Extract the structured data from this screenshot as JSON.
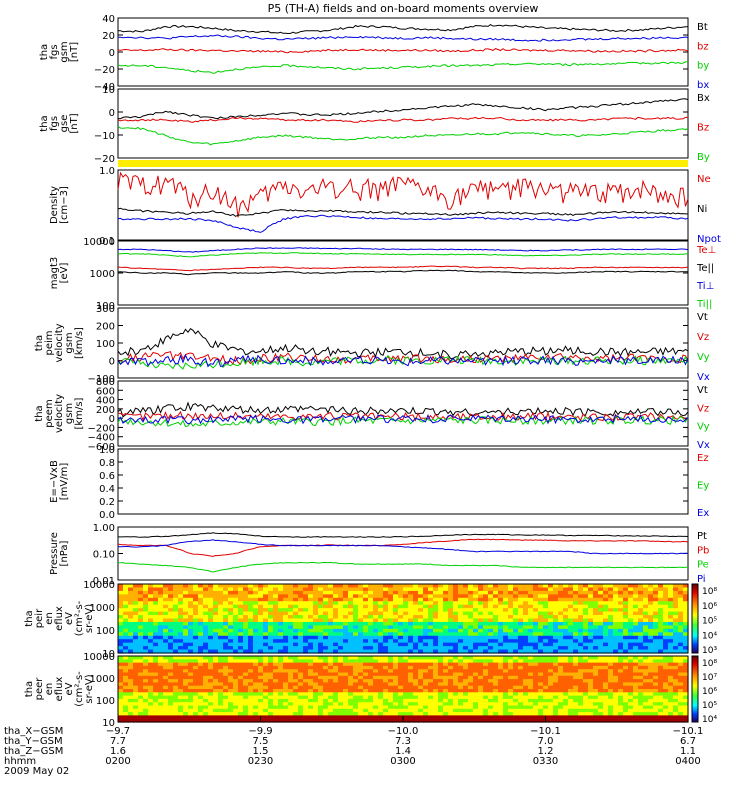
{
  "title": "P5 (TH-A) fields and on-board moments overview",
  "colors": {
    "black": "#000000",
    "red": "#e00000",
    "green": "#00d000",
    "blue": "#0000e0",
    "yellow": "#ffee00"
  },
  "panels": [
    {
      "id": "fgs-gsm",
      "ylabel_lines": [
        "tha",
        "fgs",
        "gsm",
        "[nT]"
      ],
      "ticks": [
        "40",
        "20",
        "0",
        "−20",
        "−40"
      ],
      "ylim": [
        -40,
        40
      ],
      "scale": "linear",
      "legend": [
        {
          "label": "Bt",
          "color": "black"
        },
        {
          "label": "bz",
          "color": "red"
        },
        {
          "label": "by",
          "color": "green"
        },
        {
          "label": "bx",
          "color": "blue"
        }
      ]
    },
    {
      "id": "fgs-gse",
      "ylabel_lines": [
        "tha",
        "fgs",
        "gse",
        "[nT]"
      ],
      "ticks": [
        "10",
        "0",
        "−10",
        "−20"
      ],
      "ylim": [
        -25,
        15
      ],
      "scale": "linear",
      "legend": [
        {
          "label": "Bx",
          "color": "black"
        },
        {
          "label": "Bz",
          "color": "red"
        },
        {
          "label": "By",
          "color": "green"
        }
      ]
    },
    {
      "id": "density",
      "ylabel_lines": [
        "Density",
        "[cm−3]"
      ],
      "ticks": [
        "1.0",
        "0.1"
      ],
      "ylim": [
        0.1,
        1.0
      ],
      "scale": "log",
      "legend": [
        {
          "label": "Ne",
          "color": "red"
        },
        {
          "label": "Ni",
          "color": "black"
        },
        {
          "label": "Npot",
          "color": "blue"
        }
      ]
    },
    {
      "id": "temperature",
      "ylabel_lines": [
        "magt3",
        "[eV]"
      ],
      "ticks": [
        "10000",
        "1000",
        "100"
      ],
      "ylim": [
        100,
        10000
      ],
      "scale": "log",
      "legend": [
        {
          "label": "Te⊥",
          "color": "red"
        },
        {
          "label": "Te||",
          "color": "black"
        },
        {
          "label": "Ti⊥",
          "color": "blue"
        },
        {
          "label": "Ti||",
          "color": "green"
        }
      ]
    },
    {
      "id": "peim-velocity",
      "ylabel_lines": [
        "tha",
        "peim",
        "velocity",
        "gsm",
        "[km/s]"
      ],
      "ticks": [
        "300",
        "200",
        "100",
        "0",
        "−100"
      ],
      "ylim": [
        -100,
        300
      ],
      "scale": "linear",
      "legend": [
        {
          "label": "Vt",
          "color": "black"
        },
        {
          "label": "Vz",
          "color": "red"
        },
        {
          "label": "Vy",
          "color": "green"
        },
        {
          "label": "Vx",
          "color": "blue"
        }
      ]
    },
    {
      "id": "peem-velocity",
      "ylabel_lines": [
        "tha",
        "peem",
        "velocity",
        "gsm",
        "[km/s]"
      ],
      "ticks": [
        "800",
        "600",
        "400",
        "200",
        "0",
        "−200",
        "−400",
        "−600"
      ],
      "ylim": [
        -600,
        800
      ],
      "scale": "linear",
      "legend": [
        {
          "label": "Vt",
          "color": "black"
        },
        {
          "label": "Vz",
          "color": "red"
        },
        {
          "label": "Vy",
          "color": "green"
        },
        {
          "label": "Vx",
          "color": "blue"
        }
      ]
    },
    {
      "id": "efield",
      "ylabel_lines": [
        "E=−VxB",
        "[mV/m]"
      ],
      "ticks": [
        "1.0",
        "0.8",
        "0.6",
        "0.4",
        "0.2",
        "0.0"
      ],
      "ylim": [
        0,
        1
      ],
      "scale": "linear",
      "legend": [
        {
          "label": "Ez",
          "color": "red"
        },
        {
          "label": "Ey",
          "color": "green"
        },
        {
          "label": "Ex",
          "color": "blue"
        }
      ]
    },
    {
      "id": "pressure",
      "ylabel_lines": [
        "Pressure",
        "[nPa]"
      ],
      "ticks": [
        "1.00",
        "0.10",
        "0.01"
      ],
      "ylim": [
        0.01,
        1.0
      ],
      "scale": "log",
      "legend": [
        {
          "label": "Pt",
          "color": "black"
        },
        {
          "label": "Pb",
          "color": "red"
        },
        {
          "label": "Pe",
          "color": "green"
        },
        {
          "label": "Pi",
          "color": "blue"
        }
      ]
    },
    {
      "id": "peir-eflux",
      "ylabel_lines": [
        "tha",
        "peir",
        "en",
        "eflux",
        "eV",
        "(cm²-s-",
        "sr-eV)"
      ],
      "ticks": [
        "10000",
        "1000",
        "100",
        "10"
      ],
      "ylim": [
        10,
        10000
      ],
      "scale": "log",
      "colorbar": [
        "10⁸",
        "10⁶",
        "10⁵",
        "10⁴",
        "10³"
      ]
    },
    {
      "id": "peer-eflux",
      "ylabel_lines": [
        "tha",
        "peer",
        "en",
        "eflux",
        "eV",
        "(cm²-s-",
        "sr-eV)"
      ],
      "ticks": [
        "10000",
        "1000",
        "100",
        "10"
      ],
      "ylim": [
        10,
        10000
      ],
      "scale": "log",
      "colorbar": [
        "10⁸",
        "10⁷",
        "10⁶",
        "10⁵",
        "10⁴"
      ]
    }
  ],
  "xaxis": {
    "row_labels": [
      "tha_X−GSM",
      "tha_Y−GSM",
      "tha_Z−GSM",
      "hhmm",
      "2009 May 02"
    ],
    "ticks": [
      {
        "x": "−9.7",
        "y": "7.7",
        "z": "1.6",
        "t": "0200"
      },
      {
        "x": "−9.9",
        "y": "7.5",
        "z": "1.5",
        "t": "0230"
      },
      {
        "x": "−10.0",
        "y": "7.3",
        "z": "1.4",
        "t": "0300"
      },
      {
        "x": "−10.1",
        "y": "7.0",
        "z": "1.2",
        "t": "0330"
      },
      {
        "x": "−10.1",
        "y": "6.7",
        "z": "1.1",
        "t": "0400"
      }
    ]
  },
  "chart_data": {
    "type": "line",
    "title": "P5 (TH-A) fields and on-board moments overview",
    "x_range": [
      "0200",
      "0400"
    ],
    "series": [
      {
        "name": "Bt",
        "panel": "fgs-gsm",
        "values": [
          25,
          24,
          30,
          30,
          28,
          25,
          24,
          22,
          24,
          26,
          30,
          30,
          28,
          27,
          26,
          30,
          32,
          30,
          28,
          27,
          26,
          25,
          26,
          28,
          30
        ]
      },
      {
        "name": "bz",
        "panel": "fgs-gsm",
        "values": [
          2,
          2,
          3,
          2,
          2,
          1,
          1,
          0,
          1,
          2,
          3,
          2,
          2,
          2,
          1,
          2,
          3,
          2,
          2,
          2,
          1,
          1,
          1,
          2,
          2
        ]
      },
      {
        "name": "by",
        "panel": "fgs-gsm",
        "values": [
          -16,
          -16,
          -18,
          -22,
          -24,
          -20,
          -18,
          -16,
          -17,
          -19,
          -20,
          -19,
          -18,
          -17,
          -16,
          -16,
          -15,
          -14,
          -14,
          -15,
          -14,
          -14,
          -13,
          -13,
          -12
        ]
      },
      {
        "name": "bx",
        "panel": "fgs-gsm",
        "values": [
          18,
          17,
          16,
          18,
          19,
          18,
          16,
          15,
          16,
          17,
          18,
          17,
          16,
          17,
          16,
          15,
          15,
          14,
          14,
          15,
          15,
          16,
          16,
          17,
          17
        ]
      },
      {
        "name": "Bx",
        "panel": "fgs-gse",
        "values": [
          -2,
          -1,
          2,
          0,
          -2,
          -1,
          0,
          1,
          0,
          0,
          1,
          2,
          3,
          4,
          5,
          6,
          5,
          4,
          3,
          4,
          5,
          6,
          7,
          8,
          9
        ]
      },
      {
        "name": "Bz",
        "panel": "fgs-gse",
        "values": [
          -3,
          -3,
          -3,
          -4,
          -3,
          -2,
          -2,
          -3,
          -3,
          -3,
          -4,
          -3,
          -3,
          -3,
          -2,
          -2,
          -2,
          -3,
          -3,
          -3,
          -3,
          -2,
          -2,
          -2,
          -2
        ]
      },
      {
        "name": "By",
        "panel": "fgs-gse",
        "values": [
          -7,
          -8,
          -12,
          -16,
          -17,
          -15,
          -13,
          -12,
          -13,
          -14,
          -14,
          -13,
          -13,
          -12,
          -12,
          -11,
          -11,
          -10,
          -11,
          -12,
          -12,
          -11,
          -10,
          -9,
          -8
        ]
      },
      {
        "name": "Ne",
        "panel": "density",
        "values": [
          0.7,
          0.6,
          0.7,
          0.4,
          0.5,
          0.3,
          0.4,
          0.6,
          0.5,
          0.6,
          0.55,
          0.55,
          0.6,
          0.5,
          0.4,
          0.5,
          0.6,
          0.55,
          0.55,
          0.5,
          0.45,
          0.5,
          0.55,
          0.45,
          0.4
        ]
      },
      {
        "name": "Ni",
        "panel": "density",
        "values": [
          0.28,
          0.26,
          0.25,
          0.24,
          0.26,
          0.22,
          0.24,
          0.27,
          0.26,
          0.26,
          0.25,
          0.25,
          0.24,
          0.24,
          0.23,
          0.24,
          0.25,
          0.24,
          0.24,
          0.23,
          0.24,
          0.25,
          0.25,
          0.24,
          0.24
        ]
      },
      {
        "name": "Npot",
        "panel": "density",
        "values": [
          0.2,
          0.2,
          0.2,
          0.2,
          0.19,
          0.15,
          0.13,
          0.2,
          0.22,
          0.22,
          0.21,
          0.2,
          0.2,
          0.2,
          0.2,
          0.21,
          0.2,
          0.2,
          0.2,
          0.19,
          0.2,
          0.21,
          0.21,
          0.21,
          0.2
        ]
      },
      {
        "name": "Te⊥",
        "panel": "temperature",
        "values": [
          1500,
          1400,
          1300,
          1200,
          1300,
          1400,
          1500,
          1500,
          1400,
          1400,
          1500,
          1500,
          1500,
          1600,
          1600,
          1500,
          1500,
          1400,
          1400,
          1400,
          1500,
          1500,
          1500,
          1500,
          1500
        ]
      },
      {
        "name": "Te||",
        "panel": "temperature",
        "values": [
          1100,
          1000,
          1000,
          900,
          1000,
          1000,
          1000,
          1100,
          1000,
          1000,
          1100,
          1100,
          1100,
          1200,
          1200,
          1100,
          1100,
          1000,
          1000,
          1000,
          1100,
          1100,
          1100,
          1100,
          1100
        ]
      },
      {
        "name": "Ti⊥",
        "panel": "temperature",
        "values": [
          5500,
          5500,
          5000,
          4500,
          5000,
          5500,
          6000,
          6000,
          6000,
          5800,
          5800,
          5600,
          5500,
          5500,
          5500,
          5400,
          5300,
          5000,
          5000,
          5200,
          5400,
          5500,
          5500,
          5500,
          5500
        ]
      },
      {
        "name": "Ti||",
        "panel": "temperature",
        "values": [
          4000,
          4000,
          3600,
          3200,
          3600,
          4000,
          4200,
          4200,
          4200,
          4000,
          4000,
          3900,
          3800,
          3800,
          3800,
          3800,
          3700,
          3500,
          3500,
          3600,
          3800,
          3900,
          3900,
          3900,
          3900
        ]
      },
      {
        "name": "Vt",
        "panel": "peim-velocity",
        "values": [
          40,
          60,
          120,
          180,
          90,
          60,
          50,
          70,
          60,
          50,
          40,
          45,
          50,
          40,
          35,
          40,
          45,
          50,
          55,
          60,
          50,
          45,
          45,
          50,
          50
        ]
      },
      {
        "name": "Vz",
        "panel": "peim-velocity",
        "values": [
          10,
          20,
          30,
          20,
          10,
          0,
          10,
          20,
          10,
          10,
          5,
          10,
          15,
          10,
          5,
          10,
          10,
          10,
          20,
          15,
          10,
          10,
          15,
          10,
          10
        ]
      },
      {
        "name": "Vy",
        "panel": "peim-velocity",
        "values": [
          0,
          -20,
          -40,
          -30,
          -20,
          -10,
          0,
          0,
          -10,
          0,
          0,
          5,
          0,
          0,
          5,
          0,
          0,
          -5,
          0,
          0,
          0,
          0,
          0,
          0,
          0
        ]
      },
      {
        "name": "Vx",
        "panel": "peim-velocity",
        "values": [
          0,
          -10,
          0,
          10,
          -20,
          0,
          10,
          0,
          0,
          -10,
          0,
          0,
          -10,
          0,
          0,
          0,
          -5,
          0,
          0,
          -10,
          0,
          0,
          0,
          0,
          0
        ]
      },
      {
        "name": "Vt",
        "panel": "peem-velocity",
        "values": [
          100,
          150,
          200,
          250,
          220,
          180,
          160,
          180,
          200,
          190,
          160,
          150,
          150,
          140,
          140,
          130,
          130,
          140,
          150,
          140,
          140,
          130,
          130,
          130,
          130
        ]
      },
      {
        "name": "Vz",
        "panel": "peem-velocity",
        "values": [
          30,
          40,
          60,
          60,
          50,
          50,
          40,
          40,
          50,
          40,
          40,
          30,
          30,
          30,
          30,
          30,
          30,
          30,
          40,
          30,
          30,
          30,
          30,
          30,
          30
        ]
      },
      {
        "name": "Vy",
        "panel": "peem-velocity",
        "values": [
          -50,
          -80,
          -100,
          -150,
          -120,
          -90,
          -80,
          -70,
          -80,
          -70,
          -60,
          -60,
          -60,
          -50,
          -50,
          -50,
          -50,
          -50,
          -60,
          -50,
          -50,
          -50,
          -50,
          -50,
          -50
        ]
      },
      {
        "name": "Vx",
        "panel": "peem-velocity",
        "values": [
          -20,
          -30,
          -40,
          -50,
          -40,
          -30,
          -20,
          -30,
          -30,
          -30,
          -20,
          -20,
          -20,
          -20,
          -20,
          -20,
          -20,
          -20,
          -30,
          -20,
          -20,
          -20,
          -20,
          -20,
          -20
        ]
      },
      {
        "name": "Pt",
        "panel": "pressure",
        "values": [
          0.42,
          0.42,
          0.44,
          0.5,
          0.6,
          0.55,
          0.45,
          0.42,
          0.42,
          0.43,
          0.42,
          0.42,
          0.43,
          0.45,
          0.5,
          0.52,
          0.52,
          0.5,
          0.5,
          0.48,
          0.48,
          0.47,
          0.46,
          0.45,
          0.44
        ]
      },
      {
        "name": "Pb",
        "panel": "pressure",
        "values": [
          0.22,
          0.2,
          0.2,
          0.1,
          0.08,
          0.1,
          0.18,
          0.2,
          0.2,
          0.21,
          0.2,
          0.2,
          0.22,
          0.26,
          0.3,
          0.34,
          0.34,
          0.32,
          0.32,
          0.3,
          0.3,
          0.3,
          0.3,
          0.28,
          0.28
        ]
      },
      {
        "name": "Pe",
        "panel": "pressure",
        "values": [
          0.045,
          0.04,
          0.035,
          0.03,
          0.02,
          0.03,
          0.04,
          0.045,
          0.045,
          0.045,
          0.04,
          0.04,
          0.04,
          0.04,
          0.035,
          0.035,
          0.035,
          0.03,
          0.03,
          0.03,
          0.03,
          0.03,
          0.03,
          0.03,
          0.03
        ]
      },
      {
        "name": "Pi",
        "panel": "pressure",
        "values": [
          0.18,
          0.18,
          0.2,
          0.28,
          0.32,
          0.28,
          0.22,
          0.2,
          0.2,
          0.2,
          0.2,
          0.2,
          0.18,
          0.16,
          0.14,
          0.12,
          0.12,
          0.12,
          0.12,
          0.12,
          0.1,
          0.1,
          0.1,
          0.1,
          0.1
        ]
      }
    ]
  }
}
